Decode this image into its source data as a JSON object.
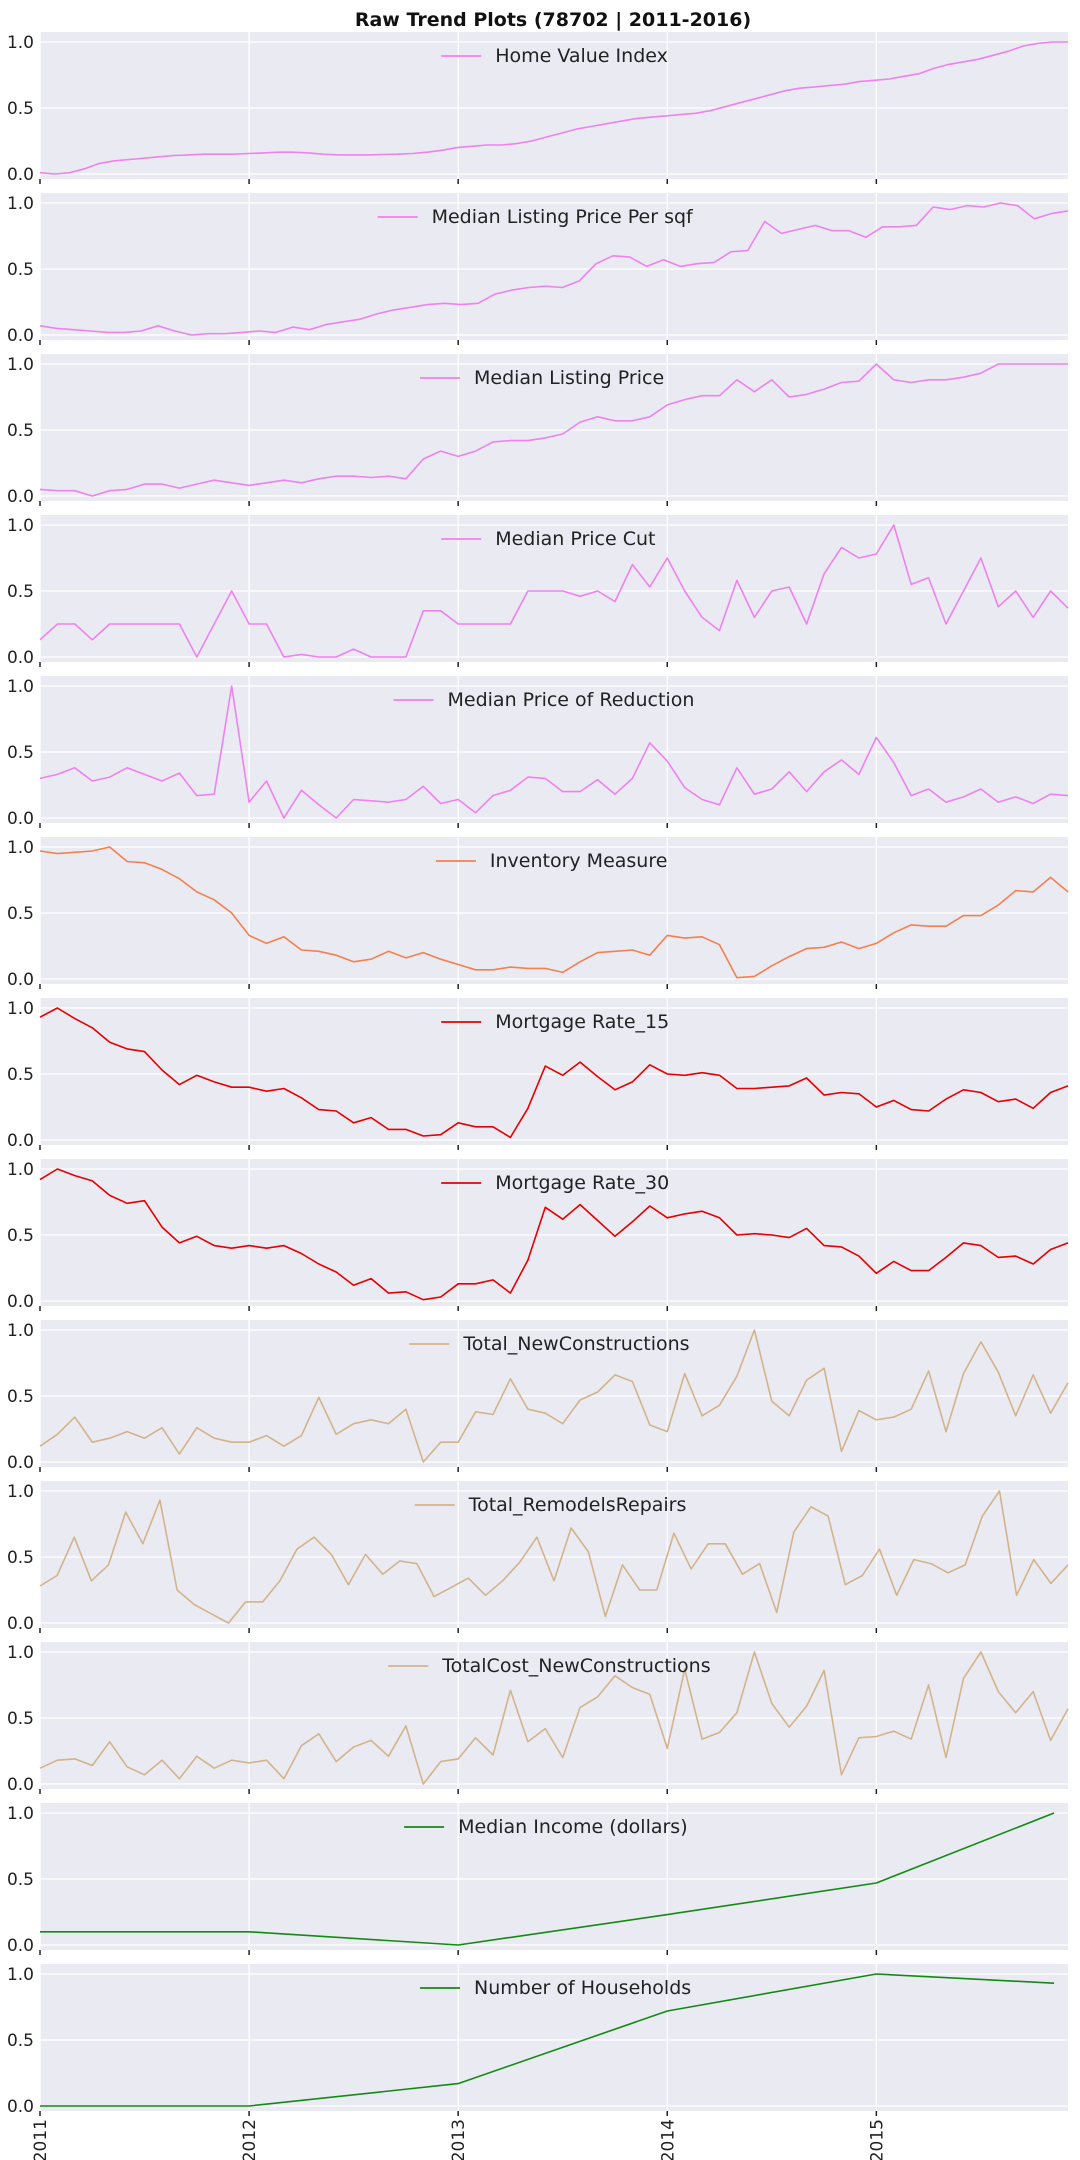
{
  "chart_data": {
    "type": "line",
    "title": "Raw Trend Plots (78702 | 2011-2016)",
    "x_ticks": [
      "2011",
      "2012",
      "2013",
      "2014",
      "2015"
    ],
    "x_range": [
      "2011-01",
      "2015-12"
    ],
    "y_range": [
      0,
      1
    ],
    "y_ticks": [
      "0.0",
      "0.5",
      "1.0"
    ],
    "grid": true,
    "legend": "top-center",
    "panels": [
      {
        "name": "Home Value Index",
        "color": "#ee82ee",
        "x_unit": "month",
        "values": [
          0.01,
          0.0,
          0.01,
          0.04,
          0.08,
          0.1,
          0.11,
          0.12,
          0.13,
          0.14,
          0.145,
          0.15,
          0.15,
          0.15,
          0.155,
          0.16,
          0.165,
          0.165,
          0.16,
          0.15,
          0.145,
          0.145,
          0.145,
          0.148,
          0.15,
          0.155,
          0.165,
          0.18,
          0.2,
          0.21,
          0.22,
          0.22,
          0.23,
          0.25,
          0.28,
          0.31,
          0.34,
          0.36,
          0.38,
          0.4,
          0.42,
          0.43,
          0.44,
          0.45,
          0.46,
          0.48,
          0.51,
          0.54,
          0.57,
          0.6,
          0.63,
          0.65,
          0.66,
          0.67,
          0.68,
          0.7,
          0.71,
          0.72,
          0.74,
          0.76,
          0.8,
          0.83,
          0.85,
          0.87,
          0.9,
          0.93,
          0.97,
          0.99,
          1.0,
          1.0
        ]
      },
      {
        "name": "Median Listing Price Per sqf",
        "color": "#ee82ee",
        "x_unit": "month",
        "values": [
          0.07,
          0.05,
          0.04,
          0.03,
          0.02,
          0.02,
          0.03,
          0.07,
          0.03,
          0.0,
          0.01,
          0.01,
          0.02,
          0.03,
          0.02,
          0.06,
          0.04,
          0.08,
          0.1,
          0.12,
          0.16,
          0.19,
          0.21,
          0.23,
          0.24,
          0.23,
          0.24,
          0.31,
          0.34,
          0.36,
          0.37,
          0.36,
          0.41,
          0.54,
          0.6,
          0.59,
          0.52,
          0.57,
          0.52,
          0.54,
          0.55,
          0.63,
          0.64,
          0.86,
          0.77,
          0.8,
          0.83,
          0.79,
          0.79,
          0.74,
          0.82,
          0.82,
          0.83,
          0.97,
          0.95,
          0.98,
          0.97,
          1.0,
          0.98,
          0.88,
          0.92,
          0.94
        ]
      },
      {
        "name": "Median Listing Price",
        "color": "#ee82ee",
        "x_unit": "month",
        "values": [
          0.05,
          0.04,
          0.04,
          0.0,
          0.04,
          0.05,
          0.09,
          0.09,
          0.06,
          0.09,
          0.12,
          0.1,
          0.08,
          0.1,
          0.12,
          0.1,
          0.13,
          0.15,
          0.15,
          0.14,
          0.15,
          0.13,
          0.28,
          0.34,
          0.3,
          0.34,
          0.41,
          0.42,
          0.42,
          0.44,
          0.47,
          0.56,
          0.6,
          0.57,
          0.57,
          0.6,
          0.69,
          0.73,
          0.76,
          0.76,
          0.88,
          0.79,
          0.88,
          0.75,
          0.77,
          0.81,
          0.86,
          0.87,
          1.0,
          0.88,
          0.86,
          0.88,
          0.88,
          0.9,
          0.93,
          1.0,
          1.0,
          1.0,
          1.0,
          1.0
        ]
      },
      {
        "name": "Median Price Cut",
        "color": "#ee82ee",
        "x_unit": "month",
        "values": [
          0.13,
          0.25,
          0.25,
          0.13,
          0.25,
          0.25,
          0.25,
          0.25,
          0.25,
          0.0,
          0.25,
          0.5,
          0.25,
          0.25,
          0.0,
          0.02,
          0.0,
          0.0,
          0.06,
          0.0,
          0.0,
          0.0,
          0.35,
          0.35,
          0.25,
          0.25,
          0.25,
          0.25,
          0.5,
          0.5,
          0.5,
          0.46,
          0.5,
          0.42,
          0.7,
          0.53,
          0.75,
          0.5,
          0.3,
          0.2,
          0.58,
          0.3,
          0.5,
          0.53,
          0.25,
          0.63,
          0.83,
          0.75,
          0.78,
          1.0,
          0.55,
          0.6,
          0.25,
          0.5,
          0.75,
          0.38,
          0.5,
          0.3,
          0.5,
          0.37
        ]
      },
      {
        "name": "Median Price of Reduction",
        "color": "#ee82ee",
        "x_unit": "month",
        "values": [
          0.3,
          0.33,
          0.38,
          0.28,
          0.31,
          0.38,
          0.33,
          0.28,
          0.34,
          0.17,
          0.18,
          1.0,
          0.12,
          0.28,
          0.0,
          0.21,
          0.1,
          0.0,
          0.14,
          0.13,
          0.12,
          0.14,
          0.24,
          0.11,
          0.14,
          0.04,
          0.17,
          0.21,
          0.31,
          0.3,
          0.2,
          0.2,
          0.29,
          0.18,
          0.3,
          0.57,
          0.43,
          0.23,
          0.14,
          0.1,
          0.38,
          0.18,
          0.22,
          0.35,
          0.2,
          0.35,
          0.44,
          0.33,
          0.61,
          0.42,
          0.17,
          0.22,
          0.12,
          0.16,
          0.22,
          0.12,
          0.16,
          0.11,
          0.18,
          0.17
        ]
      },
      {
        "name": "Inventory Measure",
        "color": "#f4804f",
        "x_unit": "month",
        "values": [
          0.97,
          0.95,
          0.96,
          0.97,
          1.0,
          0.89,
          0.88,
          0.83,
          0.76,
          0.66,
          0.6,
          0.5,
          0.33,
          0.27,
          0.32,
          0.22,
          0.21,
          0.18,
          0.13,
          0.15,
          0.21,
          0.16,
          0.2,
          0.15,
          0.11,
          0.07,
          0.07,
          0.09,
          0.08,
          0.08,
          0.05,
          0.13,
          0.2,
          0.21,
          0.22,
          0.18,
          0.33,
          0.31,
          0.32,
          0.26,
          0.01,
          0.02,
          0.1,
          0.17,
          0.23,
          0.24,
          0.28,
          0.23,
          0.27,
          0.35,
          0.41,
          0.4,
          0.4,
          0.48,
          0.48,
          0.56,
          0.67,
          0.66,
          0.77,
          0.66
        ]
      },
      {
        "name": "Mortgage Rate_15",
        "color": "#e60000",
        "x_unit": "month",
        "values": [
          0.93,
          1.0,
          0.92,
          0.85,
          0.74,
          0.69,
          0.67,
          0.53,
          0.42,
          0.49,
          0.44,
          0.4,
          0.4,
          0.37,
          0.39,
          0.32,
          0.23,
          0.22,
          0.13,
          0.17,
          0.08,
          0.08,
          0.03,
          0.04,
          0.13,
          0.1,
          0.1,
          0.02,
          0.24,
          0.56,
          0.49,
          0.59,
          0.48,
          0.38,
          0.44,
          0.57,
          0.5,
          0.49,
          0.51,
          0.49,
          0.39,
          0.39,
          0.4,
          0.41,
          0.47,
          0.34,
          0.36,
          0.35,
          0.25,
          0.3,
          0.23,
          0.22,
          0.31,
          0.38,
          0.36,
          0.29,
          0.31,
          0.24,
          0.36,
          0.41
        ]
      },
      {
        "name": "Mortgage Rate_30",
        "color": "#e60000",
        "x_unit": "month",
        "values": [
          0.92,
          1.0,
          0.95,
          0.91,
          0.8,
          0.74,
          0.76,
          0.56,
          0.44,
          0.49,
          0.42,
          0.4,
          0.42,
          0.4,
          0.42,
          0.36,
          0.28,
          0.22,
          0.12,
          0.17,
          0.06,
          0.07,
          0.01,
          0.03,
          0.13,
          0.13,
          0.16,
          0.06,
          0.31,
          0.71,
          0.62,
          0.73,
          0.61,
          0.49,
          0.6,
          0.72,
          0.63,
          0.66,
          0.68,
          0.63,
          0.5,
          0.51,
          0.5,
          0.48,
          0.55,
          0.42,
          0.41,
          0.34,
          0.21,
          0.3,
          0.23,
          0.23,
          0.33,
          0.44,
          0.42,
          0.33,
          0.34,
          0.28,
          0.39,
          0.44
        ]
      },
      {
        "name": "Total_NewConstructions",
        "color": "#d2b48c",
        "x_unit": "month",
        "values": [
          0.12,
          0.21,
          0.34,
          0.15,
          0.18,
          0.23,
          0.18,
          0.26,
          0.06,
          0.26,
          0.18,
          0.15,
          0.15,
          0.2,
          0.12,
          0.2,
          0.49,
          0.21,
          0.29,
          0.32,
          0.29,
          0.4,
          0.0,
          0.15,
          0.15,
          0.38,
          0.36,
          0.63,
          0.4,
          0.37,
          0.29,
          0.47,
          0.53,
          0.66,
          0.61,
          0.28,
          0.23,
          0.67,
          0.35,
          0.43,
          0.65,
          1.0,
          0.46,
          0.35,
          0.62,
          0.71,
          0.08,
          0.39,
          0.32,
          0.34,
          0.4,
          0.69,
          0.23,
          0.67,
          0.91,
          0.68,
          0.35,
          0.66,
          0.37,
          0.6
        ]
      },
      {
        "name": "Total_RemodelsRepairs",
        "color": "#d2b48c",
        "x_unit": "month",
        "values": [
          0.28,
          0.36,
          0.65,
          0.32,
          0.44,
          0.84,
          0.6,
          0.93,
          0.25,
          0.14,
          0.07,
          0.0,
          0.16,
          0.16,
          0.32,
          0.56,
          0.65,
          0.52,
          0.29,
          0.52,
          0.37,
          0.47,
          0.45,
          0.2,
          0.27,
          0.34,
          0.21,
          0.32,
          0.46,
          0.65,
          0.32,
          0.72,
          0.54,
          0.05,
          0.44,
          0.25,
          0.25,
          0.68,
          0.41,
          0.6,
          0.6,
          0.37,
          0.45,
          0.08,
          0.69,
          0.88,
          0.81,
          0.29,
          0.36,
          0.56,
          0.21,
          0.48,
          0.45,
          0.38,
          0.44,
          0.81,
          1.0,
          0.21,
          0.48,
          0.3,
          0.44
        ]
      },
      {
        "name": "TotalCost_NewConstructions",
        "color": "#d2b48c",
        "x_unit": "month",
        "values": [
          0.12,
          0.18,
          0.19,
          0.14,
          0.32,
          0.13,
          0.07,
          0.18,
          0.04,
          0.21,
          0.12,
          0.18,
          0.16,
          0.18,
          0.04,
          0.29,
          0.38,
          0.17,
          0.28,
          0.33,
          0.21,
          0.44,
          0.0,
          0.17,
          0.19,
          0.35,
          0.22,
          0.71,
          0.32,
          0.42,
          0.2,
          0.58,
          0.66,
          0.82,
          0.73,
          0.68,
          0.27,
          0.87,
          0.34,
          0.39,
          0.54,
          1.0,
          0.61,
          0.43,
          0.59,
          0.86,
          0.07,
          0.35,
          0.36,
          0.4,
          0.34,
          0.75,
          0.2,
          0.8,
          1.0,
          0.7,
          0.54,
          0.7,
          0.33,
          0.57
        ]
      },
      {
        "name": "Median Income (dollars)",
        "color": "#138a13",
        "x_unit": "year",
        "x": [
          2011,
          2012,
          2013,
          2014,
          2015,
          2016
        ],
        "values": [
          0.1,
          0.1,
          0.0,
          0.23,
          0.47,
          1.0
        ]
      },
      {
        "name": "Number of Households",
        "color": "#138a13",
        "x_unit": "year",
        "x": [
          2011,
          2012,
          2013,
          2014,
          2015,
          2016
        ],
        "values": [
          0.0,
          0.0,
          0.17,
          0.72,
          1.0,
          0.93
        ]
      }
    ]
  }
}
